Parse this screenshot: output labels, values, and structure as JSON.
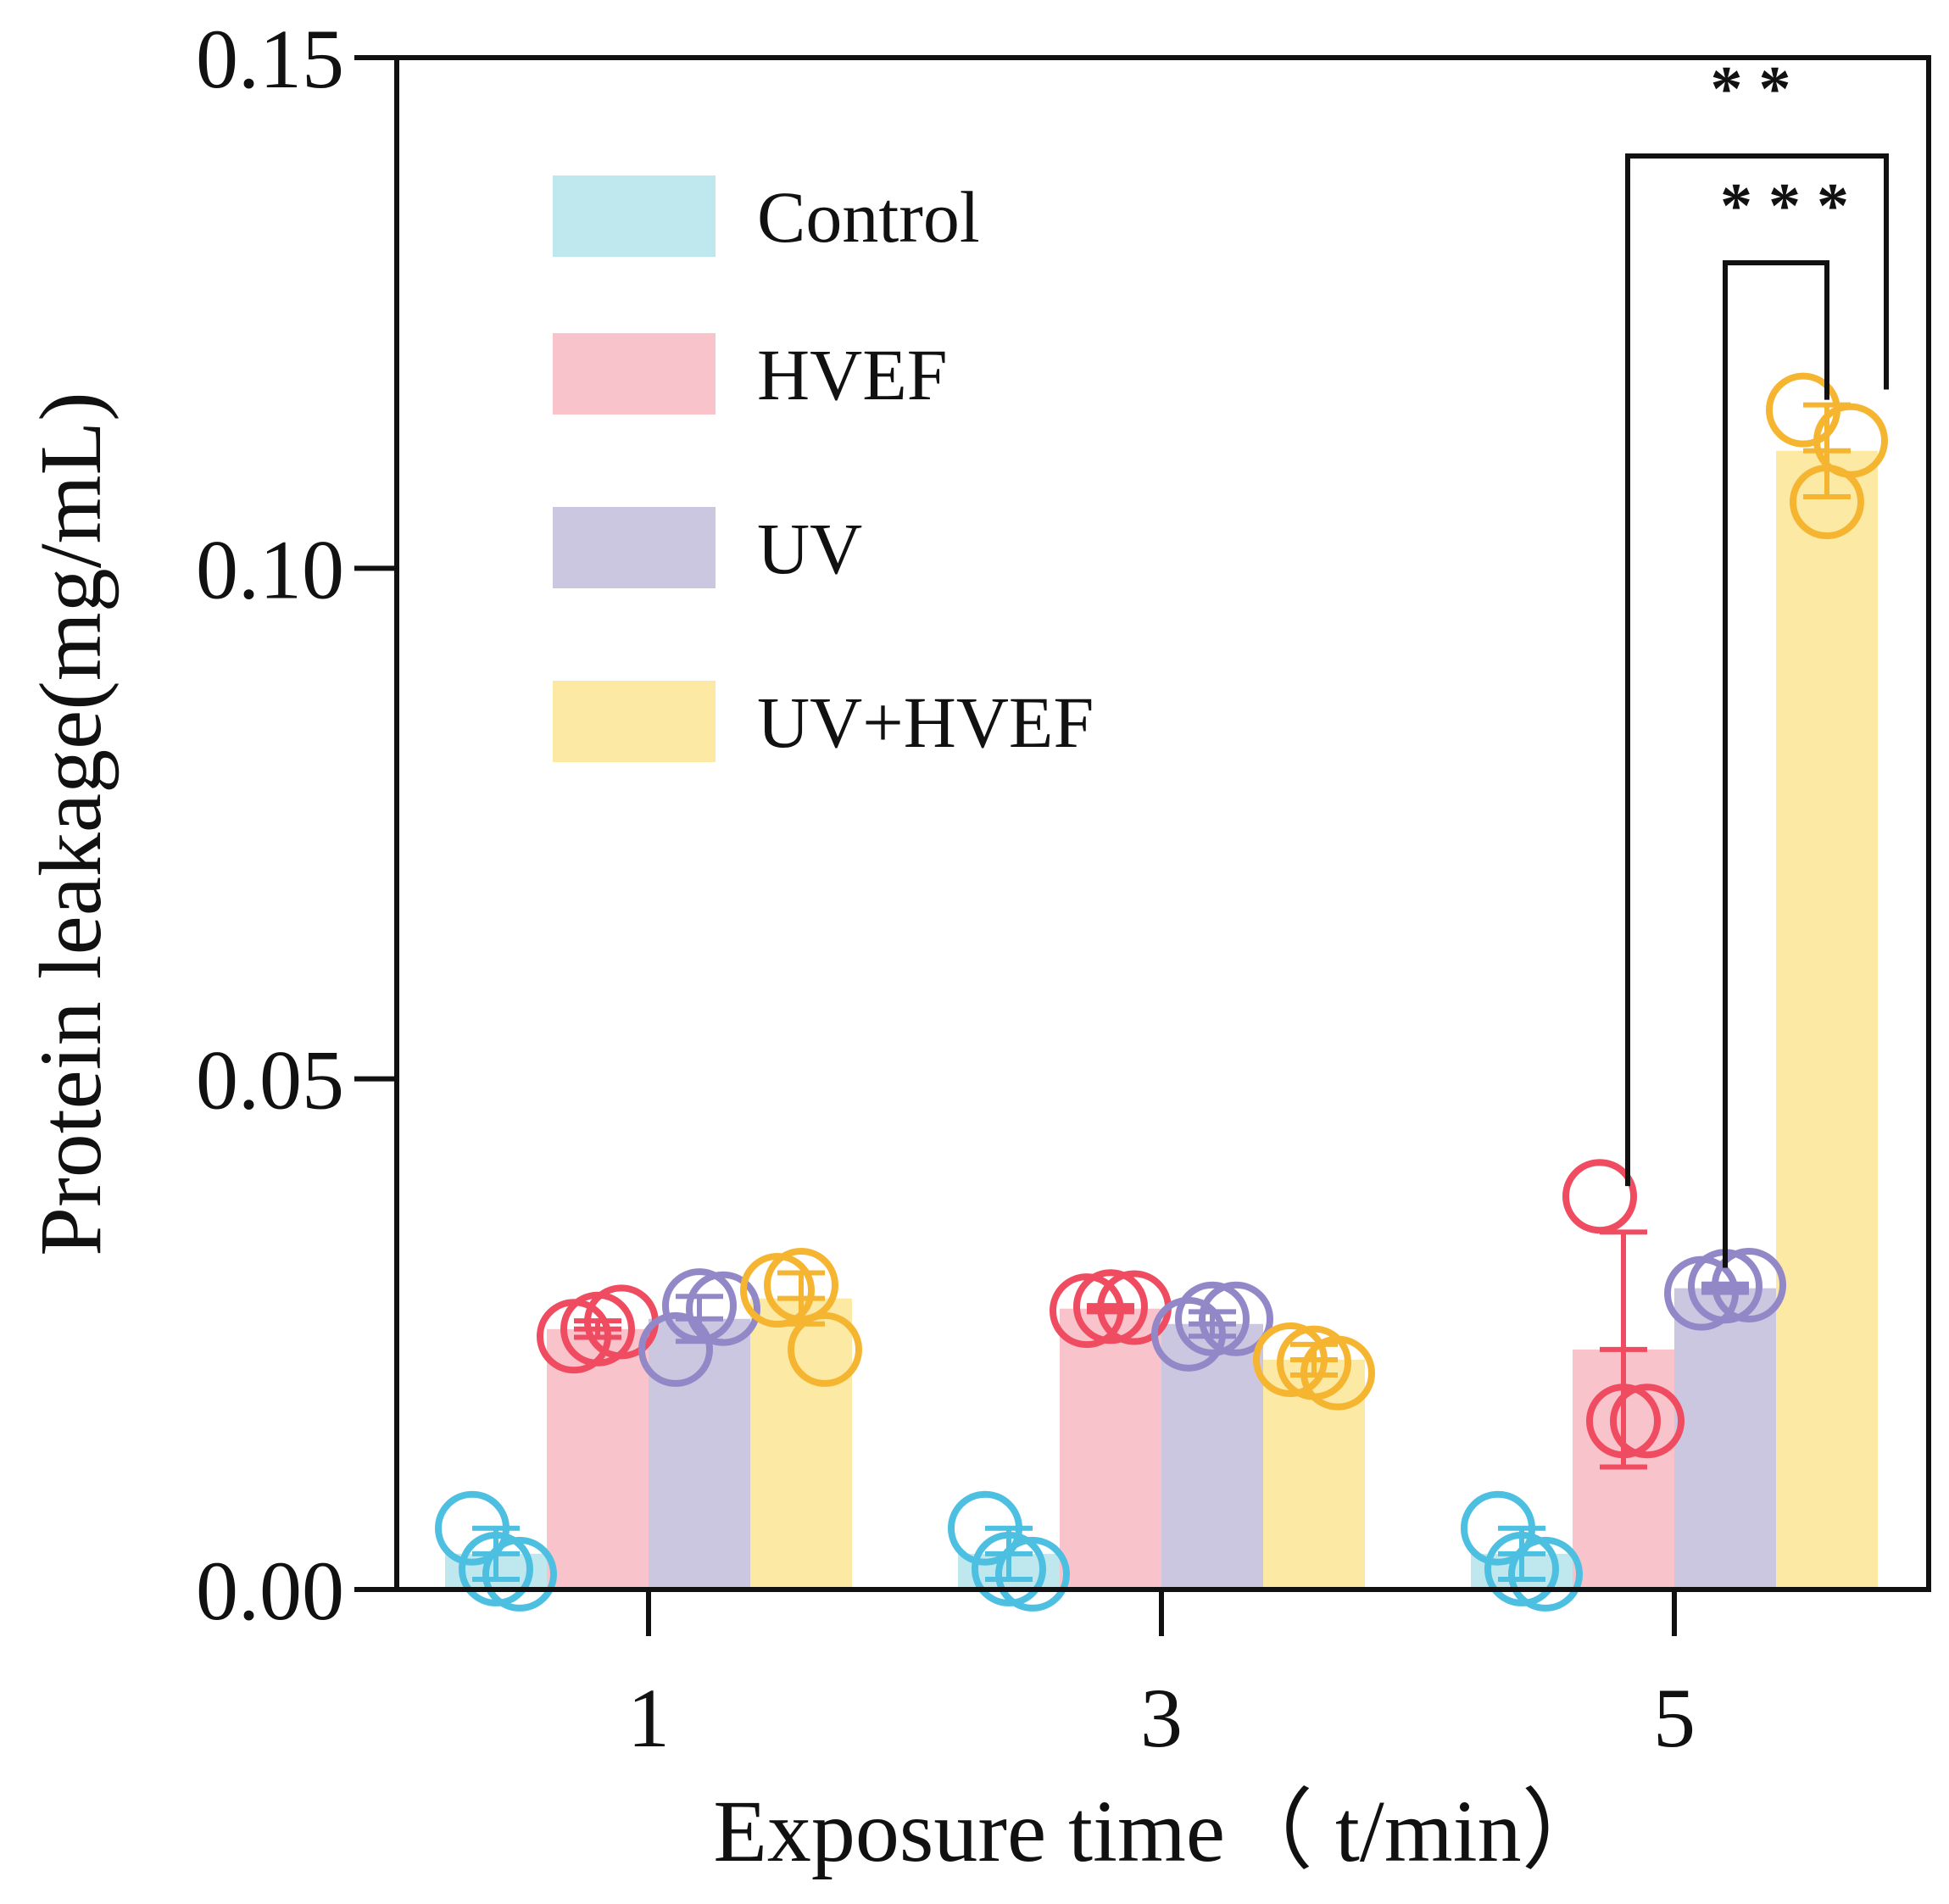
{
  "chart_data": {
    "type": "bar",
    "title": "",
    "xlabel": "Exposure time（ t/min）",
    "ylabel": "Protein leakage(mg/mL)",
    "ylim": [
      0,
      0.15
    ],
    "yticks": [
      0.0,
      0.05,
      0.1,
      0.15
    ],
    "ytick_labels": [
      "0.00",
      "0.05",
      "0.10",
      "0.15"
    ],
    "categories": [
      "1",
      "3",
      "5"
    ],
    "series": [
      {
        "name": "Control",
        "color": "#bfe8ee",
        "point_color": "#4dbfe0",
        "values": [
          0.0035,
          0.0035,
          0.0035
        ],
        "errors": [
          0.0025,
          0.0025,
          0.0025
        ],
        "points": [
          [
            0.006,
            0.0015,
            0.002
          ],
          [
            0.006,
            0.0015,
            0.002
          ],
          [
            0.006,
            0.0015,
            0.002
          ]
        ]
      },
      {
        "name": "HVEF",
        "color": "#f8c3cb",
        "point_color": "#ef4c61",
        "values": [
          0.0255,
          0.0275,
          0.0235
        ],
        "errors": [
          0.0008,
          0.0003,
          0.0115
        ],
        "points": [
          [
            0.0248,
            0.0262,
            0.0255
          ],
          [
            0.0273,
            0.0276,
            0.0277
          ],
          [
            0.0385,
            0.0165,
            0.0165
          ]
        ]
      },
      {
        "name": "UV",
        "color": "#ccc7e1",
        "point_color": "#9388c7",
        "values": [
          0.0265,
          0.026,
          0.0295
        ],
        "errors": [
          0.0022,
          0.0012,
          0.0004
        ],
        "points": [
          [
            0.0235,
            0.0275,
            0.0278
          ],
          [
            0.025,
            0.0265,
            0.0265
          ],
          [
            0.029,
            0.0298,
            0.0297
          ]
        ]
      },
      {
        "name": "UV+HVEF",
        "color": "#fbe9a4",
        "point_color": "#f5b531",
        "values": [
          0.0285,
          0.0225,
          0.1115
        ],
        "errors": [
          0.0025,
          0.0015,
          0.0045
        ],
        "points": [
          [
            0.0293,
            0.0235,
            0.0298
          ],
          [
            0.0225,
            0.0212,
            0.0222
          ],
          [
            0.1155,
            0.1125,
            0.1065
          ]
        ]
      }
    ],
    "significance": [
      {
        "label": "* * *",
        "from_series": "UV",
        "to_series": "UV+HVEF",
        "category": "5"
      },
      {
        "label": "* *",
        "from_series": "HVEF",
        "to_series": "UV+HVEF",
        "category": "5"
      }
    ],
    "legend_position": "top-left"
  }
}
